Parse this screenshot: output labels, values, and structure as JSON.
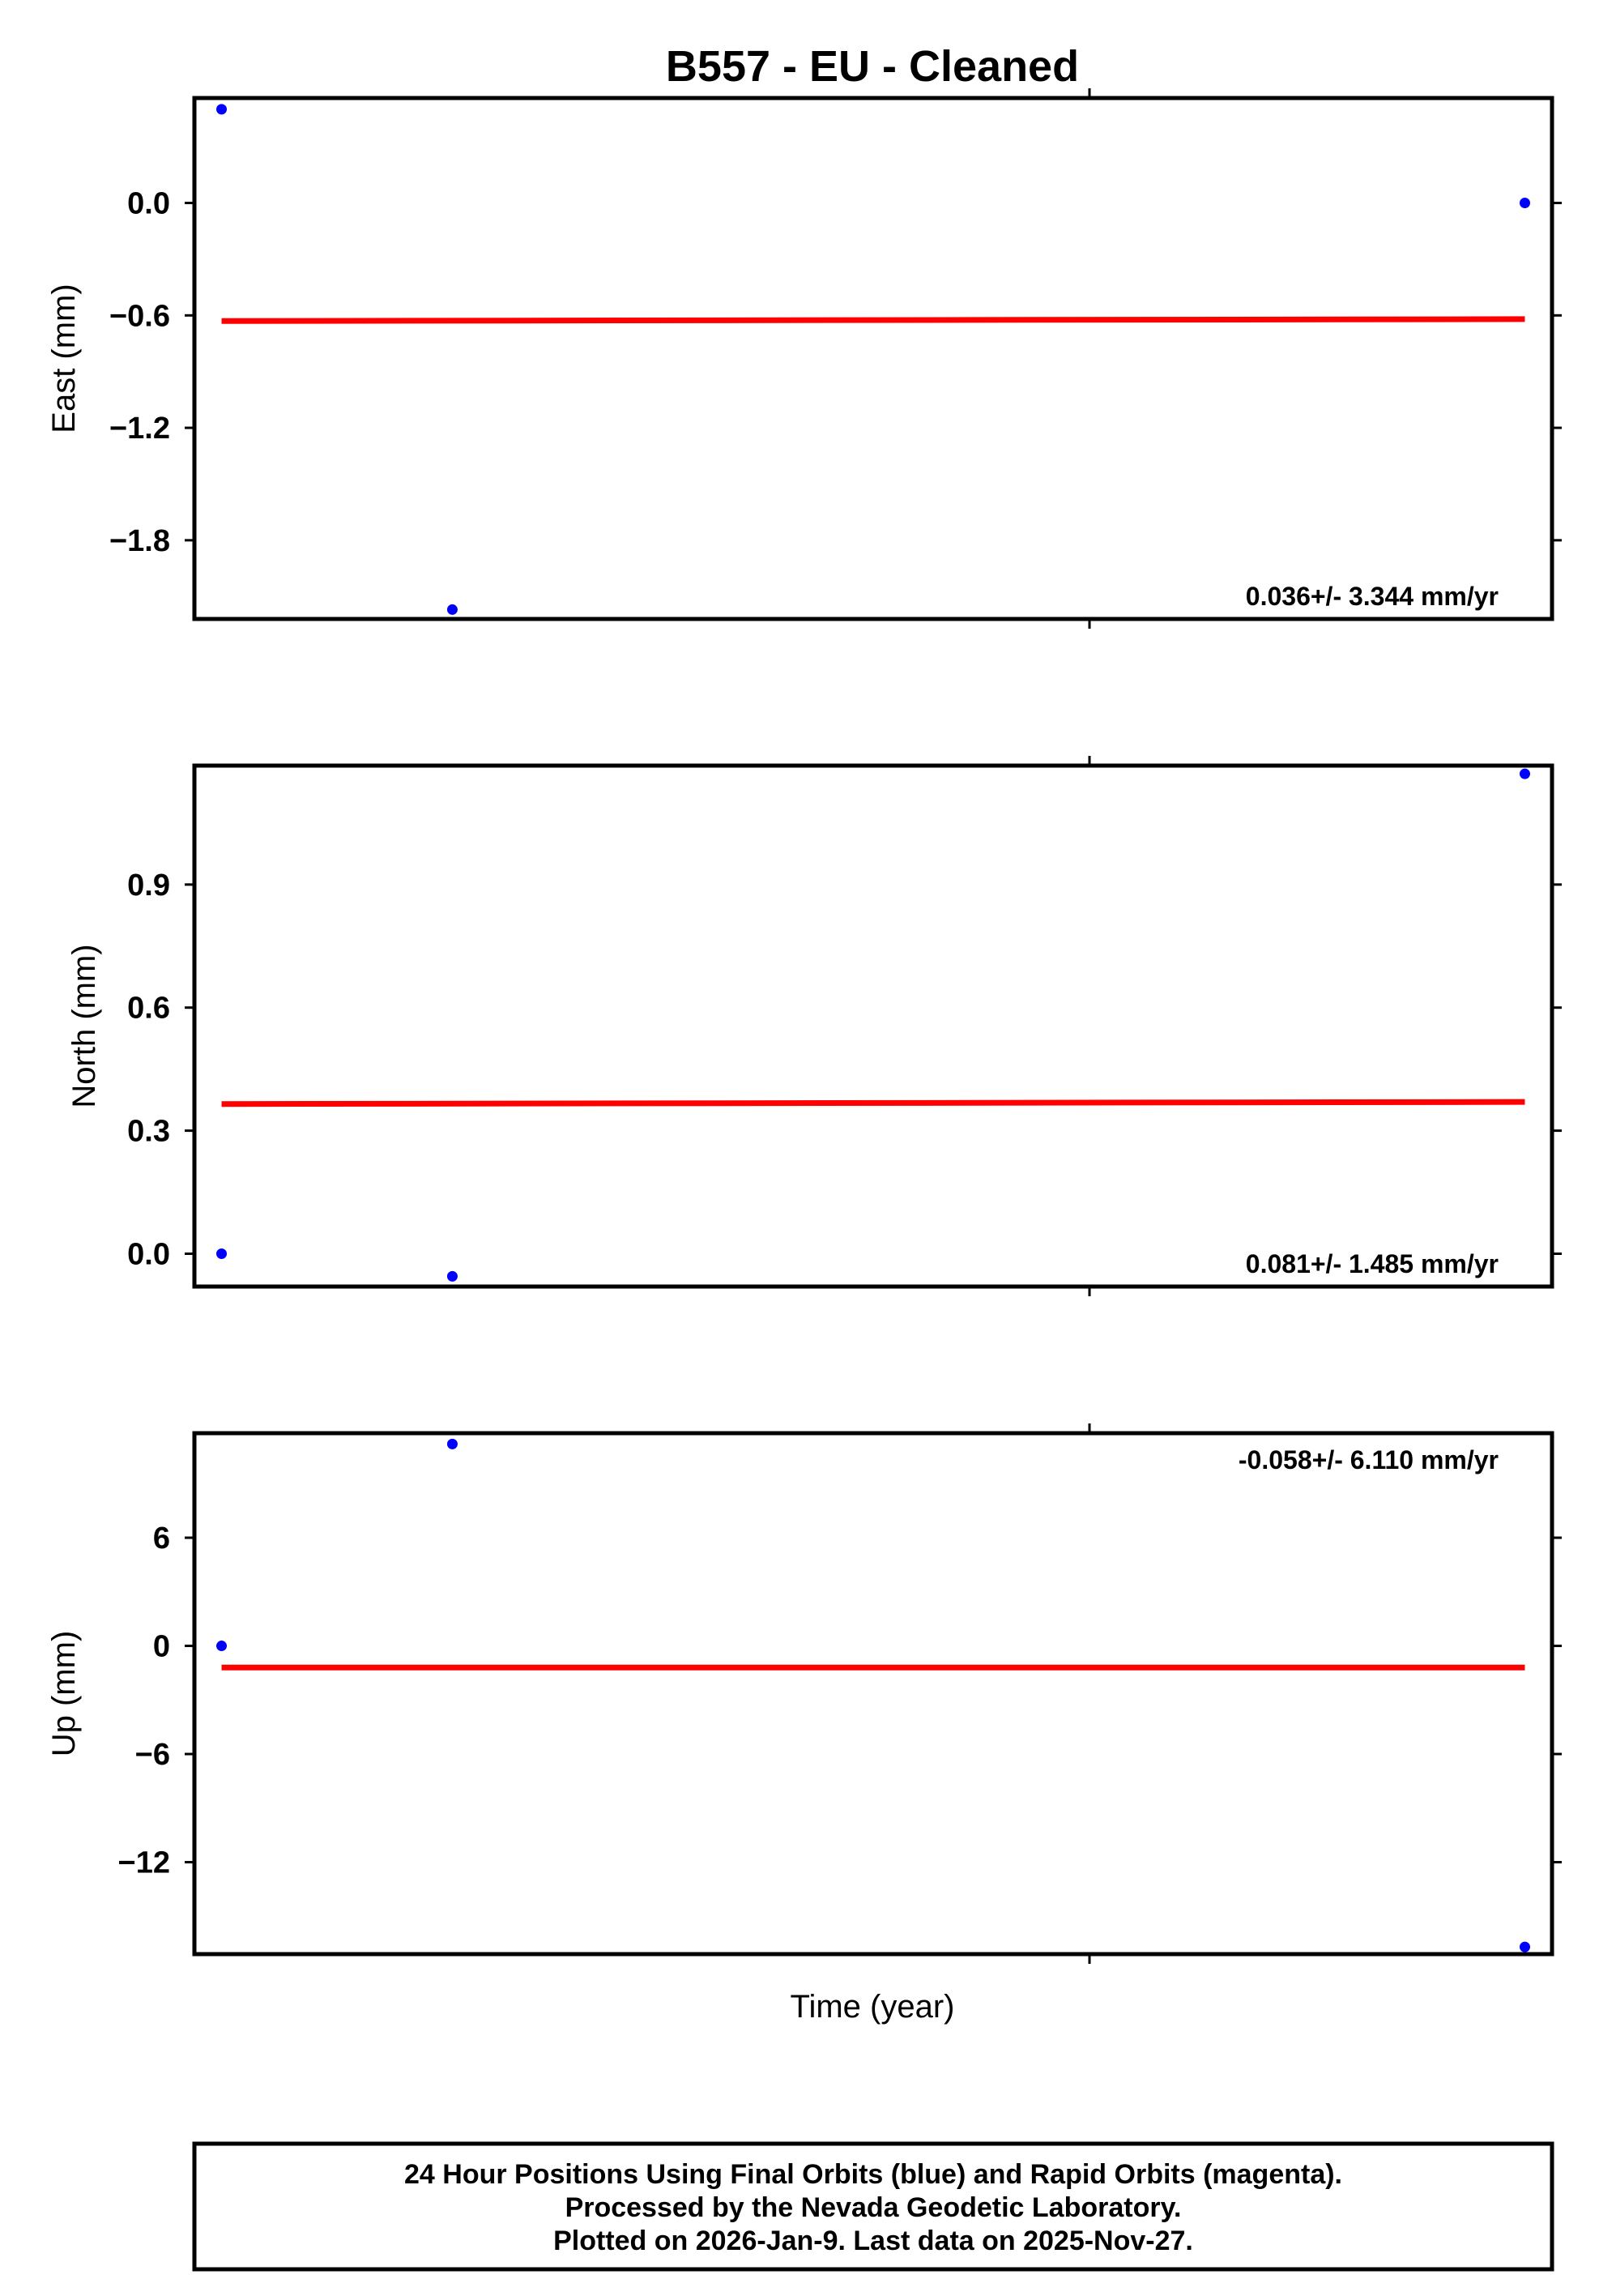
{
  "chart_data": {
    "title": "B557  - EU - Cleaned",
    "xlabel": "Time (year)",
    "type": "scatter",
    "colors": {
      "points": "#0000ff",
      "trend": "#ff0000",
      "frame": "#000000"
    },
    "panels": [
      {
        "id": "east",
        "ylabel": "East (mm)",
        "ylim": [
          -2.22,
          0.56
        ],
        "yticks": [
          0.0,
          -0.6,
          -1.2,
          -1.8
        ],
        "ytick_labels": [
          "0.0",
          "−0.6",
          "−1.2",
          "−1.8"
        ],
        "points": [
          {
            "x": 0.02,
            "y": 0.5
          },
          {
            "x": 0.19,
            "y": -2.17
          },
          {
            "x": 0.98,
            "y": 0.0
          }
        ],
        "trend": [
          {
            "x": 0.02,
            "y": -0.63
          },
          {
            "x": 0.98,
            "y": -0.62
          }
        ],
        "rate_text": "0.036+/- 3.344 mm/yr",
        "rate_position": "bottom-right"
      },
      {
        "id": "north",
        "ylabel": "North (mm)",
        "ylim": [
          -0.08,
          1.19
        ],
        "yticks": [
          0.9,
          0.6,
          0.3,
          0.0
        ],
        "ytick_labels": [
          "0.9",
          "0.6",
          "0.3",
          "0.0"
        ],
        "points": [
          {
            "x": 0.02,
            "y": 0.0
          },
          {
            "x": 0.19,
            "y": -0.055
          },
          {
            "x": 0.98,
            "y": 1.17
          }
        ],
        "trend": [
          {
            "x": 0.02,
            "y": 0.365
          },
          {
            "x": 0.98,
            "y": 0.37
          }
        ],
        "rate_text": "0.081+/- 1.485 mm/yr",
        "rate_position": "bottom-right"
      },
      {
        "id": "up",
        "ylabel": "Up (mm)",
        "ylim": [
          -17.1,
          11.8
        ],
        "yticks": [
          6,
          0,
          -6,
          -12
        ],
        "ytick_labels": [
          "6",
          "0",
          "−6",
          "−12"
        ],
        "points": [
          {
            "x": 0.02,
            "y": 0.0
          },
          {
            "x": 0.19,
            "y": 11.2
          },
          {
            "x": 0.98,
            "y": -16.7
          }
        ],
        "trend": [
          {
            "x": 0.02,
            "y": -1.2
          },
          {
            "x": 0.98,
            "y": -1.2
          }
        ],
        "rate_text": "-0.058+/- 6.110 mm/yr",
        "rate_position": "top-right"
      }
    ]
  },
  "footer": {
    "line1": "24 Hour Positions Using Final Orbits (blue) and Rapid Orbits (magenta).",
    "line2": "Processed by the Nevada Geodetic Laboratory.",
    "line3": "Plotted on 2026-Jan-9. Last data on 2025-Nov-27."
  }
}
